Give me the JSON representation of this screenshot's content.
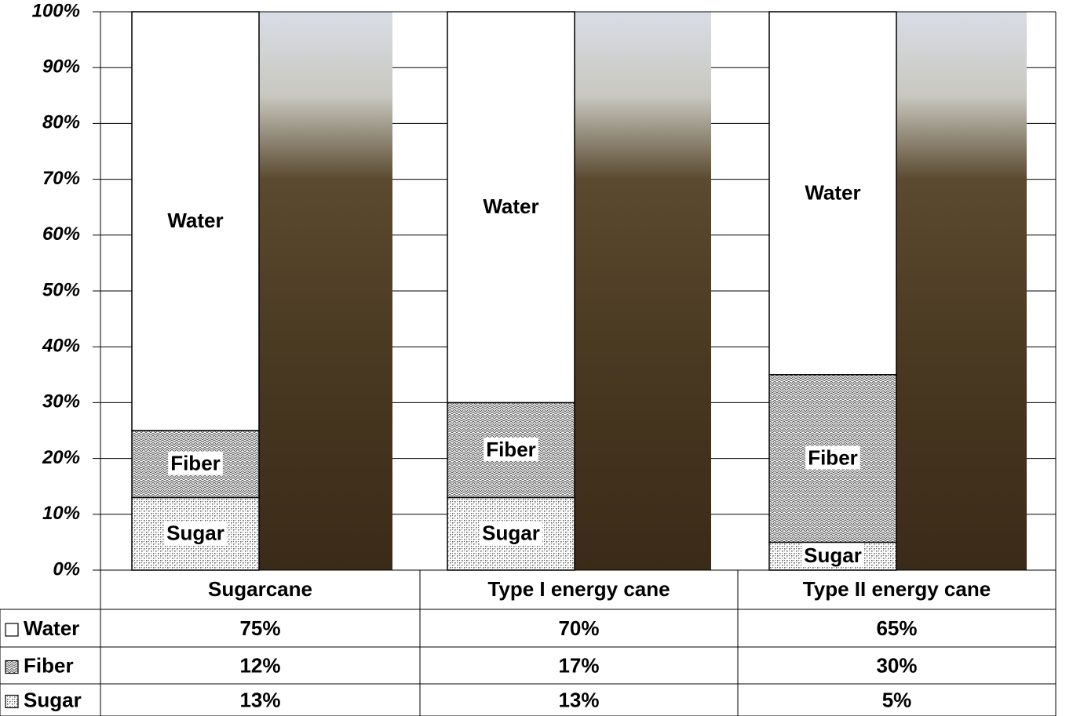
{
  "chart_data": {
    "type": "stacked-bar",
    "categories": [
      "Sugarcane",
      "Type I energy cane",
      "Type II energy cane"
    ],
    "series": [
      {
        "name": "Water",
        "color": "#ffffff",
        "pattern": "none",
        "values": [
          75,
          70,
          65
        ],
        "value_labels": [
          "75%",
          "70%",
          "65%"
        ]
      },
      {
        "name": "Fiber",
        "color": "#555555",
        "pattern": "weave",
        "values": [
          12,
          17,
          30
        ],
        "value_labels": [
          "12%",
          "17%",
          "30%"
        ]
      },
      {
        "name": "Sugar",
        "color": "#666666",
        "pattern": "dots",
        "values": [
          13,
          13,
          5
        ],
        "value_labels": [
          "13%",
          "13%",
          "5%"
        ]
      }
    ],
    "ylim": [
      0,
      100
    ],
    "yticks": [
      {
        "value": 0,
        "label": "0%"
      },
      {
        "value": 10,
        "label": "10%"
      },
      {
        "value": 20,
        "label": "20%"
      },
      {
        "value": 30,
        "label": "30%"
      },
      {
        "value": 40,
        "label": "40%"
      },
      {
        "value": 50,
        "label": "50%"
      },
      {
        "value": 60,
        "label": "60%"
      },
      {
        "value": 70,
        "label": "70%"
      },
      {
        "value": 80,
        "label": "80%"
      },
      {
        "value": 90,
        "label": "90%"
      },
      {
        "value": 100,
        "label": "100%"
      }
    ],
    "grid": true
  }
}
